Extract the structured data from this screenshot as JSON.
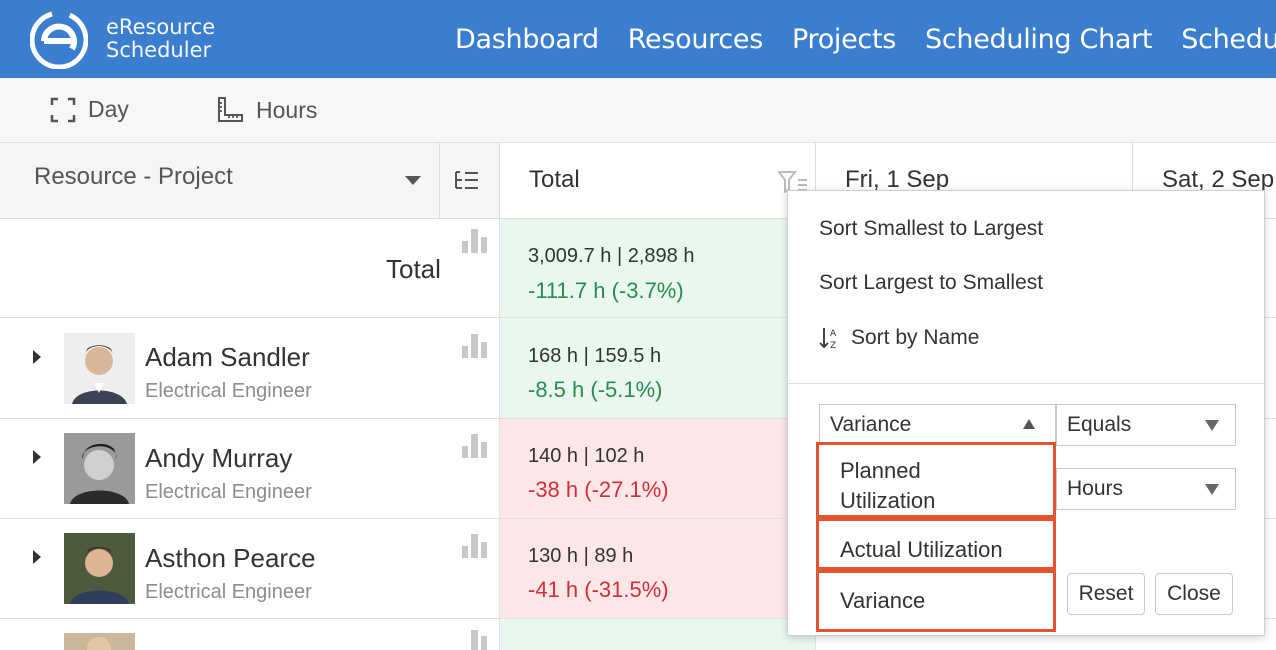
{
  "brand": {
    "line1": "eResource",
    "line2": "Scheduler"
  },
  "nav": [
    "Dashboard",
    "Resources",
    "Projects",
    "Scheduling Chart",
    "Schedule L"
  ],
  "toolbar": {
    "day_label": "Day",
    "hours_label": "Hours"
  },
  "grid": {
    "header": {
      "resource_project": "Resource - Project",
      "total": "Total",
      "day1": "Fri, 1 Sep",
      "day2": "Sat, 2 Sep"
    },
    "total_row": {
      "label": "Total",
      "line1": "3,009.7 h | 2,898 h",
      "line2": "-111.7 h (-3.7%)"
    },
    "rows": [
      {
        "name": "Adam Sandler",
        "role": "Electrical Engineer",
        "line1": "168 h | 159.5 h",
        "line2": "-8.5 h (-5.1%)",
        "status": "green"
      },
      {
        "name": "Andy Murray",
        "role": "Electrical Engineer",
        "line1": "140 h | 102 h",
        "line2": "-38 h (-27.1%)",
        "status": "red"
      },
      {
        "name": "Asthon Pearce",
        "role": "Electrical Engineer",
        "line1": "130 h | 89 h",
        "line2": "-41 h (-31.5%)",
        "status": "red"
      }
    ]
  },
  "popup": {
    "sort_asc": "Sort Smallest to Largest",
    "sort_desc": "Sort Largest to Smallest",
    "sort_name": "Sort by Name",
    "field_select": "Variance",
    "operator_select": "Equals",
    "unit_select": "Hours",
    "reset_label": "Reset",
    "close_label": "Close",
    "options": [
      "Planned Utilization",
      "Actual Utilization",
      "Variance"
    ]
  },
  "colors": {
    "header_blue": "#3b7ed0",
    "positive": "#2a8a4e",
    "negative": "#d32f3b",
    "highlight": "#e0542e"
  }
}
